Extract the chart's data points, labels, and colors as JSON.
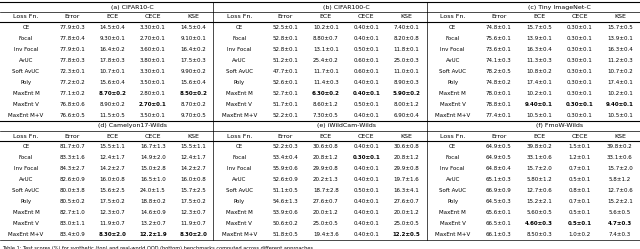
{
  "sections_top": [
    "(a) CIFAR10-C",
    "(b) CIFAR100-C",
    "(c) Tiny ImageNet-C"
  ],
  "sections_bot": [
    "(d) Camelyon17-Wilds",
    "(e) iWildCam-Wilds",
    "(f) FmoW-Wilds"
  ],
  "col_headers": [
    "Loss Fn.",
    "Error",
    "ECE",
    "CECE",
    "KSE"
  ],
  "rows_top": [
    [
      "CE",
      "77.9±0.3",
      "14.5±0.4",
      "3.30±0.1",
      "14.5±0.4",
      "52.5±0.1",
      "10.2±0.1",
      "0.40±0.1",
      "7.40±0.1",
      "74.8±0.1",
      "15.7±0.5",
      "0.30±0.1",
      "15.7±0.5"
    ],
    [
      "Focal",
      "77.8±0.4",
      "9.30±0.1",
      "2.70±0.1",
      "9.10±0.1",
      "52.8±0.1",
      "8.80±0.7",
      "0.40±0.1",
      "8.20±0.8",
      "75.6±0.1",
      "13.9±0.1",
      "0.30±0.1",
      "13.9±0.1"
    ],
    [
      "Inv Focal",
      "77.9±0.1",
      "16.4±0.2",
      "3.60±0.1",
      "16.4±0.2",
      "52.8±0.1",
      "13.1±0.1",
      "0.50±0.1",
      "11.8±0.1",
      "73.6±0.1",
      "16.3±0.4",
      "0.30±0.1",
      "16.3±0.4"
    ],
    [
      "AvUC",
      "77.8±0.3",
      "17.8±0.3",
      "3.80±0.1",
      "17.5±0.3",
      "51.2±0.1",
      "25.4±0.2",
      "0.60±0.1",
      "25.0±0.3",
      "74.1±0.3",
      "11.3±0.3",
      "0.30±0.1",
      "11.2±0.3"
    ],
    [
      "Soft AvUC",
      "72.3±0.1",
      "10.7±0.1",
      "3.30±0.1",
      "9.90±0.2",
      "47.7±0.1",
      "11.7±0.1",
      "0.60±0.1",
      "11.0±0.1",
      "78.2±0.5",
      "10.8±0.2",
      "0.30±0.1",
      "10.7±0.2"
    ],
    [
      "Poly",
      "77.2±0.2",
      "15.6±0.4",
      "3.50±0.1",
      "15.6±0.4",
      "52.6±0.1",
      "11.4±0.3",
      "0.40±0.1",
      "8.90±0.3",
      "74.8±0.2",
      "17.4±0.1",
      "0.30±0.1",
      "17.4±0.1"
    ],
    [
      "MaxEnt M",
      "77.1±0.2",
      "B8.70±0.2",
      "2.80±0.1",
      "B8.50±0.2",
      "52.7±0.1",
      "B6.30±0.2",
      "B0.40±0.1",
      "B5.90±0.2",
      "78.0±0.1",
      "10.2±0.1",
      "0.30±0.1",
      "10.2±0.1"
    ],
    [
      "MaxEnt V",
      "76.8±0.6",
      "8.90±0.2",
      "B2.70±0.1",
      "8.70±0.2",
      "51.7±0.1",
      "8.60±1.2",
      "0.50±0.1",
      "8.00±1.2",
      "78.8±0.1",
      "B9.40±0.1",
      "B0.30±0.1",
      "B9.40±0.1"
    ],
    [
      "MaxEnt M+V",
      "76.6±0.5",
      "11.5±0.5",
      "3.50±0.1",
      "9.70±0.5",
      "52.2±0.1",
      "7.30±0.5",
      "0.40±0.1",
      "6.90±0.4",
      "77.4±0.1",
      "10.5±0.1",
      "0.30±0.1",
      "10.5±0.1"
    ]
  ],
  "rows_bottom": [
    [
      "CE",
      "81.7±0.7",
      "15.5±1.1",
      "16.7±1.3",
      "15.5±1.1",
      "52.2±0.3",
      "30.6±0.8",
      "0.40±0.1",
      "30.6±0.8",
      "64.9±0.5",
      "39.8±0.2",
      "1.5±0.1",
      "39.8±0.2"
    ],
    [
      "Focal",
      "83.3±1.6",
      "12.4±1.7",
      "14.9±2.0",
      "12.4±1.7",
      "53.4±0.4",
      "20.8±1.2",
      "B0.30±0.1",
      "20.8±1.2",
      "64.9±0.5",
      "33.1±0.6",
      "1.2±0.1",
      "33.1±0.6"
    ],
    [
      "Inv Focal",
      "84.3±2.7",
      "14.2±2.7",
      "15.0±2.8",
      "14.2±2.7",
      "55.9±0.6",
      "29.9±0.8",
      "0.40±0.1",
      "29.9±0.8",
      "64.8±0.4",
      "15.7±2.0",
      "0.7±0.1",
      "15.7±2.0"
    ],
    [
      "AvUC",
      "82.6±0.9",
      "16.0±0.8",
      "16.5±1.0",
      "16.0±0.8",
      "52.6±0.9",
      "20.2±1.3",
      "0.40±0.1",
      "19.7±1.6",
      "65.1±0.3",
      "5.80±1.2",
      "0.5±0.1",
      "5.8±1.2"
    ],
    [
      "Soft AvUC",
      "80.0±3.8",
      "15.6±2.5",
      "24.0±1.5",
      "15.7±2.5",
      "51.1±0.5",
      "18.7±2.8",
      "0.50±0.1",
      "16.3±4.1",
      "66.9±0.9",
      "12.7±0.6",
      "0.8±0.1",
      "12.7±0.6"
    ],
    [
      "Poly",
      "80.5±0.2",
      "17.5±0.2",
      "18.8±0.2",
      "17.5±0.2",
      "54.6±1.3",
      "27.6±0.7",
      "0.40±0.1",
      "27.6±0.7",
      "64.5±0.3",
      "15.2±2.1",
      "0.7±0.1",
      "15.2±2.1"
    ],
    [
      "MaxEnt M",
      "82.7±1.0",
      "12.3±0.7",
      "14.6±0.9",
      "12.3±0.7",
      "53.9±0.6",
      "20.0±1.2",
      "0.40±0.1",
      "20.0±1.2",
      "65.6±0.1",
      "5.60±0.5",
      "0.5±0.1",
      "5.6±0.5"
    ],
    [
      "MaxEnt V",
      "83.0±1.1",
      "11.9±0.7",
      "13.2±0.7",
      "11.9±0.7",
      "50.6±0.2",
      "25.0±0.5",
      "0.40±0.1",
      "25.0±0.5",
      "66.5±0.1",
      "B4.60±0.3",
      "B0.5±0.1",
      "B4.7±0.3"
    ],
    [
      "MaxEnt M+V",
      "83.4±0.9",
      "B8.30±2.0",
      "B12.2±1.9",
      "B8.30±2.0",
      "51.8±0.5",
      "19.4±3.6",
      "0.40±0.1",
      "B12.2±0.5",
      "66.1±0.3",
      "8.50±0.3",
      "1.0±0.2",
      "7.4±0.3"
    ]
  ],
  "caption": "Table 1: Test scores (%) for synthetic (top) and real-world OOD (bottom) benchmarks computed across different approaches.",
  "fs_section": 4.5,
  "fs_colhdr": 4.5,
  "fs_data": 4.0,
  "fs_caption": 3.6
}
